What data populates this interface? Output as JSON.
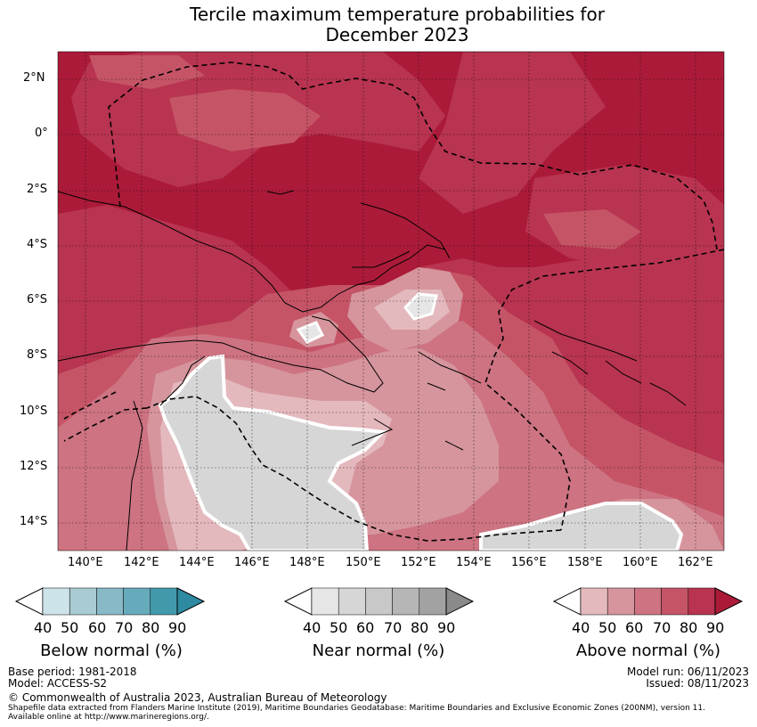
{
  "title": {
    "line1": "Tercile maximum temperature probabilities for",
    "line2": "December 2023"
  },
  "map": {
    "lat_labels": [
      "2°N",
      "0°",
      "2°S",
      "4°S",
      "6°S",
      "8°S",
      "10°S",
      "12°S",
      "14°S"
    ],
    "lon_labels": [
      "140°E",
      "142°E",
      "144°E",
      "146°E",
      "148°E",
      "150°E",
      "152°E",
      "154°E",
      "156°E",
      "158°E",
      "160°E",
      "162°E"
    ],
    "lon_range": [
      139,
      163
    ],
    "lat_range": [
      -15,
      3
    ]
  },
  "colorbars": [
    {
      "name": "below",
      "title": "Below normal (%)",
      "ticks": [
        "40",
        "50",
        "60",
        "70",
        "80",
        "90"
      ],
      "colors": [
        "#cde3ea",
        "#a9cbd3",
        "#88b9c6",
        "#66abbb",
        "#4399ac",
        "#2e8aa0"
      ]
    },
    {
      "name": "near",
      "title": "Near normal (%)",
      "ticks": [
        "40",
        "50",
        "60",
        "70",
        "80",
        "90"
      ],
      "colors": [
        "#e6e6e6",
        "#d6d6d6",
        "#c8c8c8",
        "#b6b6b6",
        "#a2a2a2",
        "#8a8a8a"
      ]
    },
    {
      "name": "above",
      "title": "Above normal (%)",
      "ticks": [
        "40",
        "50",
        "60",
        "70",
        "80",
        "90"
      ],
      "colors": [
        "#e3b9bd",
        "#d6959d",
        "#cd7381",
        "#c55467",
        "#b83450",
        "#ab1b39"
      ]
    }
  ],
  "footer": {
    "base_period": "Base period: 1981-2018",
    "model": "Model: ACCESS-S2",
    "model_run": "Model run: 06/11/2023",
    "issued": "Issued: 08/11/2023",
    "copyright": "© Commonwealth of Australia 2023, Australian Bureau of Meteorology",
    "source1": "Shapefile data extracted from Flanders Marine Institute (2019), Maritime Boundaries Geodatabase: Maritime Boundaries and Exclusive Economic Zones (200NM), version 11.",
    "source2": "Available online at http://www.marineregions.org/."
  }
}
